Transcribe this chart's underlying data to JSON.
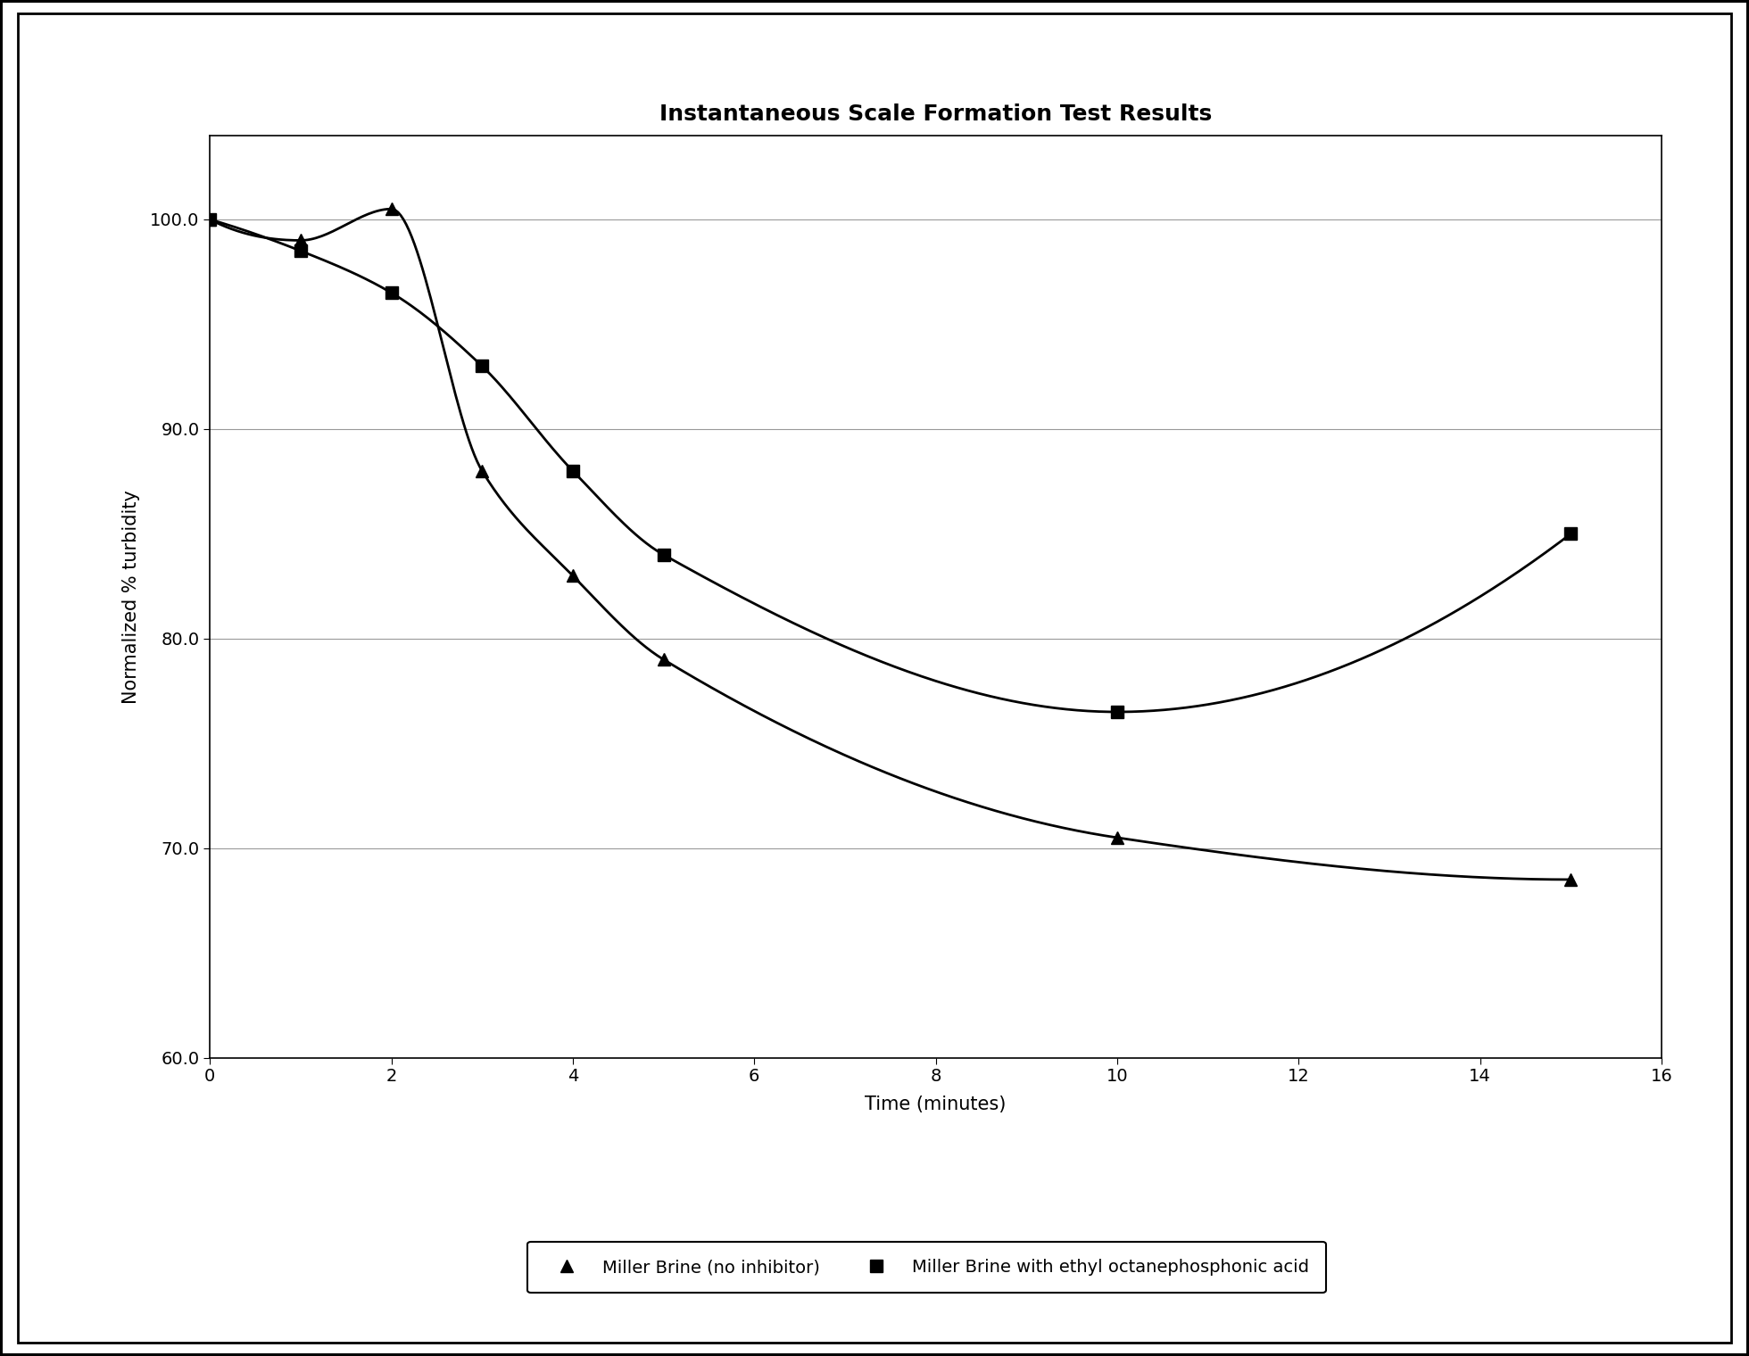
{
  "title": "Instantaneous Scale Formation Test Results",
  "xlabel": "Time (minutes)",
  "ylabel": "Normalized % turbidity",
  "xlim": [
    0,
    16
  ],
  "ylim": [
    60.0,
    104.0
  ],
  "xticks": [
    0,
    2,
    4,
    6,
    8,
    10,
    12,
    14,
    16
  ],
  "yticks": [
    60.0,
    70.0,
    80.0,
    90.0,
    100.0
  ],
  "series1": {
    "label": "Miller Brine (no inhibitor)",
    "x": [
      0,
      1,
      2,
      3,
      4,
      5,
      10,
      15
    ],
    "y": [
      100.0,
      99.0,
      100.5,
      88.0,
      83.0,
      79.0,
      70.5,
      68.5
    ],
    "marker": "^",
    "color": "#000000",
    "linewidth": 2.0,
    "markersize": 10
  },
  "series2": {
    "label": "Miller Brine with ethyl octanephosphonic acid",
    "x": [
      0,
      1,
      2,
      3,
      4,
      5,
      10,
      15
    ],
    "y": [
      100.0,
      98.5,
      96.5,
      93.0,
      88.0,
      84.0,
      76.5,
      85.0
    ],
    "marker": "s",
    "color": "#000000",
    "linewidth": 2.0,
    "markersize": 10
  },
  "title_fontsize": 18,
  "label_fontsize": 15,
  "tick_fontsize": 14,
  "legend_fontsize": 14,
  "background_color": "#ffffff",
  "grid_color": "#999999"
}
